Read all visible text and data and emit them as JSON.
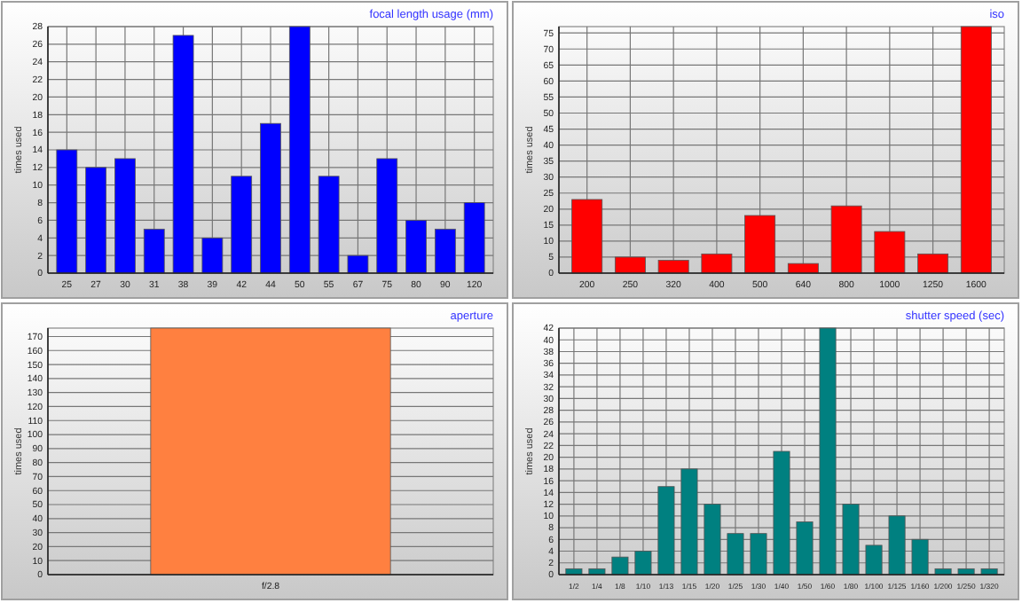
{
  "chart_data": [
    {
      "type": "bar",
      "title": "focal length usage (mm)",
      "ylabel": "times used",
      "categories": [
        "25",
        "27",
        "30",
        "31",
        "38",
        "39",
        "42",
        "44",
        "50",
        "55",
        "67",
        "75",
        "80",
        "90",
        "120"
      ],
      "values": [
        14,
        12,
        13,
        5,
        27,
        4,
        11,
        17,
        28,
        11,
        2,
        13,
        6,
        5,
        8
      ],
      "color": "#0000ff",
      "ylim": [
        0,
        28
      ],
      "yticks": [
        0,
        2,
        4,
        6,
        8,
        10,
        12,
        14,
        16,
        18,
        20,
        22,
        24,
        26,
        28
      ],
      "grid": true
    },
    {
      "type": "bar",
      "title": "iso",
      "ylabel": "times used",
      "categories": [
        "200",
        "250",
        "320",
        "400",
        "500",
        "640",
        "800",
        "1000",
        "1250",
        "1600"
      ],
      "values": [
        23,
        5,
        4,
        6,
        18,
        3,
        21,
        13,
        6,
        77
      ],
      "color": "#ff0000",
      "ylim": [
        0,
        77
      ],
      "yticks": [
        0,
        5,
        10,
        15,
        20,
        25,
        30,
        35,
        40,
        45,
        50,
        55,
        60,
        65,
        70,
        75
      ],
      "grid": true
    },
    {
      "type": "bar",
      "title": "aperture",
      "ylabel": "times used",
      "categories": [
        "f/2.8"
      ],
      "values": [
        176
      ],
      "color": "#ff8040",
      "ylim": [
        0,
        176
      ],
      "yticks": [
        0,
        10,
        20,
        30,
        40,
        50,
        60,
        70,
        80,
        90,
        100,
        110,
        120,
        130,
        140,
        150,
        160,
        170
      ],
      "grid": "y"
    },
    {
      "type": "bar",
      "title": "shutter speed (sec)",
      "ylabel": "times used",
      "categories": [
        "1/2",
        "1/4",
        "1/8",
        "1/10",
        "1/13",
        "1/15",
        "1/20",
        "1/25",
        "1/30",
        "1/40",
        "1/50",
        "1/60",
        "1/80",
        "1/100",
        "1/125",
        "1/160",
        "1/200",
        "1/250",
        "1/320"
      ],
      "values": [
        1,
        1,
        3,
        4,
        15,
        18,
        12,
        7,
        7,
        21,
        9,
        42,
        12,
        5,
        10,
        6,
        1,
        1,
        1
      ],
      "color": "#008080",
      "ylim": [
        0,
        42
      ],
      "yticks": [
        0,
        2,
        4,
        6,
        8,
        10,
        12,
        14,
        16,
        18,
        20,
        22,
        24,
        26,
        28,
        30,
        32,
        34,
        36,
        38,
        40,
        42
      ],
      "grid": true
    }
  ]
}
